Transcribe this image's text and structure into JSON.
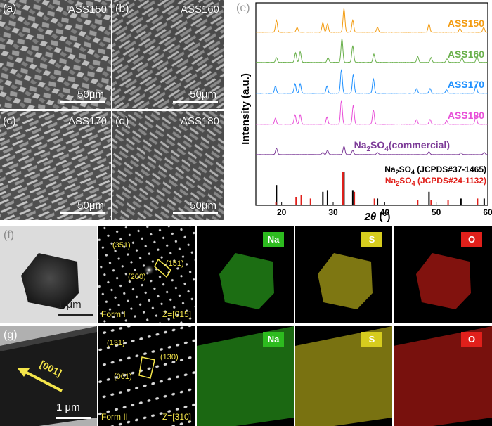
{
  "sem": [
    {
      "label": "(a)",
      "sample": "ASS150",
      "scale": "50μm"
    },
    {
      "label": "(b)",
      "sample": "ASS160",
      "scale": "50μm"
    },
    {
      "label": "(c)",
      "sample": "ASS170",
      "scale": "50μm"
    },
    {
      "label": "(d)",
      "sample": "ASS180",
      "scale": "50μm"
    }
  ],
  "xrd": {
    "label": "(e)",
    "ylabel": "Intensity (a.u.)",
    "xlabel_sym": "2θ",
    "xlabel_unit": " (°)",
    "x_ticks": [
      "20",
      "30",
      "40",
      "50",
      "60"
    ],
    "traces": [
      {
        "name": "ASS150",
        "color": "#f39c12"
      },
      {
        "name": "ASS160",
        "color": "#6ab04c"
      },
      {
        "name": "ASS170",
        "color": "#1e90ff"
      },
      {
        "name": "ASS180",
        "color": "#e84fd8"
      },
      {
        "name_main": "Na",
        "name_sub": "2",
        "name_mid": "SO",
        "name_sub2": "4",
        "name_tail": "(commercial)",
        "color": "#7d3c98"
      }
    ],
    "refs": [
      {
        "main": "Na",
        "sub": "2",
        "mid": "SO",
        "sub2": "4",
        "tail": " (JCPDS#37-1465)",
        "color": "#000000"
      },
      {
        "main": "Na",
        "sub": "2",
        "mid": "SO",
        "sub2": "4",
        "tail": " (JCPDS#24-1132)",
        "color": "#e0201b"
      }
    ]
  },
  "chart_data": {
    "type": "line",
    "xlabel": "2θ (°)",
    "ylabel": "Intensity (a.u.)",
    "xlim": [
      15,
      60
    ],
    "series": [
      {
        "name": "ASS150",
        "peaks_x": [
          19.0,
          23.0,
          28.0,
          28.9,
          32.1,
          33.8,
          38.6,
          48.6,
          54.6,
          59.2
        ],
        "peaks_h": [
          0.5,
          0.2,
          0.4,
          0.35,
          1.0,
          0.5,
          0.2,
          0.35,
          0.15,
          0.2
        ]
      },
      {
        "name": "ASS160",
        "peaks_x": [
          19.0,
          22.7,
          23.6,
          29.0,
          31.7,
          33.8,
          37.9,
          46.4,
          49.0,
          52.1,
          55.0,
          57.9
        ],
        "peaks_h": [
          0.2,
          0.4,
          0.45,
          0.2,
          1.0,
          0.7,
          0.35,
          0.25,
          0.2,
          0.15,
          0.2,
          0.25
        ]
      },
      {
        "name": "ASS170",
        "peaks_x": [
          18.8,
          22.6,
          23.6,
          28.8,
          31.6,
          33.9,
          37.8,
          46.2,
          48.8,
          52.0,
          57.7
        ],
        "peaks_h": [
          0.3,
          0.4,
          0.4,
          0.3,
          1.0,
          0.8,
          0.6,
          0.2,
          0.2,
          0.15,
          0.35
        ]
      },
      {
        "name": "ASS180",
        "peaks_x": [
          18.8,
          22.6,
          23.6,
          28.8,
          31.6,
          33.9,
          37.8,
          46.2,
          48.8,
          52.0,
          57.7
        ],
        "peaks_h": [
          0.25,
          0.4,
          0.4,
          0.3,
          1.0,
          0.8,
          0.6,
          0.2,
          0.2,
          0.15,
          0.35
        ]
      },
      {
        "name": "Na2SO4(commercial)",
        "peaks_x": [
          19.0,
          28.0,
          28.9,
          32.1,
          33.8,
          38.6,
          48.6,
          54.8,
          59.3
        ],
        "peaks_h": [
          0.45,
          0.15,
          0.3,
          0.6,
          0.3,
          0.15,
          0.2,
          0.12,
          0.15
        ]
      }
    ],
    "reference_sticks": [
      {
        "name": "Na2SO4 (JCPDS#37-1465)",
        "x": [
          19.0,
          28.0,
          28.9,
          32.1,
          33.8,
          38.6,
          48.6,
          54.8,
          59.3
        ],
        "h": [
          0.6,
          0.4,
          0.45,
          1.0,
          0.45,
          0.2,
          0.4,
          0.2,
          0.2
        ]
      },
      {
        "name": "Na2SO4 (JCPDS#24-1132)",
        "x": [
          18.7,
          22.6,
          23.6,
          25.4,
          31.7,
          33.9,
          37.8,
          46.2,
          48.8,
          52.1,
          57.8
        ],
        "h": [
          0.1,
          0.25,
          0.3,
          0.2,
          1.0,
          0.4,
          0.2,
          0.15,
          0.15,
          0.15,
          0.2
        ]
      }
    ]
  },
  "tem_f": {
    "label": "(f)",
    "scale": "1 μm",
    "form": "Form I",
    "zone": "Z=[015]",
    "m1": "(351)",
    "m2": "(151)",
    "m3": "(200)"
  },
  "tem_g": {
    "label": "(g)",
    "scale": "1 μm",
    "dir": "[001]",
    "form": "Form II",
    "zone": "Z=[310]",
    "m1": "(131)",
    "m2": "(130)",
    "m3": "(001)"
  },
  "elements": [
    "Na",
    "S",
    "O"
  ],
  "colors": {
    "na": "#2dbb1f",
    "s": "#d6cc1e",
    "o": "#e0201b",
    "accent": "#f5e64a"
  }
}
